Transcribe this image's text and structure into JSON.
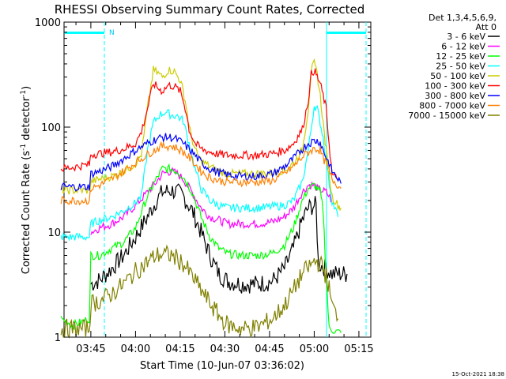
{
  "chart_data": {
    "type": "line",
    "title": "RHESSI Observing Summary Count Rates, Corrected",
    "xlabel": "Start Time (10-Jun-07 03:36:02)",
    "ylabel": "Corrected Count Rate (s⁻¹ detector⁻¹)",
    "ylabel_main": "Corrected Count Rate (s",
    "ylabel_sup1": "-1",
    "ylabel_mid": " detector",
    "ylabel_sup2": "-1",
    "ylabel_end": ")",
    "y_scale": "log",
    "ylim": [
      1,
      1000
    ],
    "xlim_minutes_after_0336": [
      0,
      103
    ],
    "x_ticks": [
      {
        "label": "03:45",
        "t": 9
      },
      {
        "label": "04:00",
        "t": 24
      },
      {
        "label": "04:15",
        "t": 39
      },
      {
        "label": "04:30",
        "t": 54
      },
      {
        "label": "04:45",
        "t": 69
      },
      {
        "label": "05:00",
        "t": 84
      },
      {
        "label": "05:15",
        "t": 99
      }
    ],
    "y_ticks": [
      {
        "label": "1",
        "v": 1
      },
      {
        "label": "10",
        "v": 10
      },
      {
        "label": "100",
        "v": 100
      },
      {
        "label": "1000",
        "v": 1000
      }
    ],
    "legend_header": [
      "Det 1,3,4,5,6,9,",
      "Att 0"
    ],
    "legend_position": "right",
    "night_label": "N",
    "timestamp": "15-Oct-2021 18:38",
    "series": [
      {
        "name": "3 - 6 keV",
        "color": "#000000",
        "points": [
          [
            9,
            3.2
          ],
          [
            12,
            3.5
          ],
          [
            16,
            4.5
          ],
          [
            20,
            6
          ],
          [
            24,
            9
          ],
          [
            28,
            14
          ],
          [
            31,
            20
          ],
          [
            33,
            24
          ],
          [
            36,
            25
          ],
          [
            38,
            24
          ],
          [
            40,
            22
          ],
          [
            43,
            16
          ],
          [
            46,
            10
          ],
          [
            49,
            6
          ],
          [
            52,
            4
          ],
          [
            55,
            3.4
          ],
          [
            60,
            3.2
          ],
          [
            65,
            3.2
          ],
          [
            70,
            3.4
          ],
          [
            74,
            4.5
          ],
          [
            77,
            7
          ],
          [
            80,
            13
          ],
          [
            82,
            17
          ],
          [
            84,
            18
          ],
          [
            84.6,
            18
          ],
          [
            85.4,
            5
          ],
          [
            88,
            4.5
          ],
          [
            90,
            4
          ],
          [
            92,
            4
          ],
          [
            95,
            4
          ]
        ]
      },
      {
        "name": "6 - 12 keV",
        "color": "#ff00ff",
        "points": [
          [
            9,
            10
          ],
          [
            12,
            11
          ],
          [
            16,
            12
          ],
          [
            20,
            14
          ],
          [
            24,
            18
          ],
          [
            28,
            24
          ],
          [
            31,
            30
          ],
          [
            33,
            36
          ],
          [
            36,
            38
          ],
          [
            38,
            36
          ],
          [
            40,
            32
          ],
          [
            43,
            24
          ],
          [
            46,
            17
          ],
          [
            49,
            14
          ],
          [
            52,
            13
          ],
          [
            55,
            12
          ],
          [
            60,
            12
          ],
          [
            65,
            12
          ],
          [
            70,
            12.5
          ],
          [
            74,
            14
          ],
          [
            77,
            17
          ],
          [
            80,
            24
          ],
          [
            82,
            28
          ],
          [
            84,
            28
          ],
          [
            85,
            26
          ],
          [
            88,
            24
          ],
          [
            90,
            20
          ]
        ]
      },
      {
        "name": "12 - 25 keV",
        "color": "#00ff00",
        "points": [
          [
            -1,
            1.5
          ],
          [
            3,
            1.3
          ],
          [
            6,
            1.4
          ],
          [
            8.5,
            1.5
          ],
          [
            9,
            6
          ],
          [
            12,
            6
          ],
          [
            16,
            7
          ],
          [
            20,
            8
          ],
          [
            24,
            11
          ],
          [
            28,
            22
          ],
          [
            31,
            32
          ],
          [
            33,
            40
          ],
          [
            36,
            40
          ],
          [
            38,
            38
          ],
          [
            40,
            34
          ],
          [
            43,
            24
          ],
          [
            46,
            14
          ],
          [
            49,
            9
          ],
          [
            52,
            7
          ],
          [
            55,
            6.2
          ],
          [
            60,
            6
          ],
          [
            65,
            6
          ],
          [
            70,
            6.3
          ],
          [
            74,
            7.5
          ],
          [
            77,
            11
          ],
          [
            80,
            20
          ],
          [
            82,
            26
          ],
          [
            84,
            28
          ],
          [
            85,
            26
          ],
          [
            86,
            24
          ],
          [
            87,
            16
          ],
          [
            88,
            4
          ],
          [
            89,
            1.2
          ],
          [
            93,
            1.1
          ]
        ]
      },
      {
        "name": "25 - 50 keV",
        "color": "#00ffff",
        "points": [
          [
            -1,
            9
          ],
          [
            4,
            9
          ],
          [
            8.5,
            9
          ],
          [
            9,
            12
          ],
          [
            12,
            13
          ],
          [
            16,
            14
          ],
          [
            20,
            16
          ],
          [
            24,
            19
          ],
          [
            26,
            22
          ],
          [
            28,
            60
          ],
          [
            30,
            110
          ],
          [
            32,
            130
          ],
          [
            34,
            140
          ],
          [
            36,
            130
          ],
          [
            38,
            128
          ],
          [
            40,
            115
          ],
          [
            42,
            70
          ],
          [
            44,
            40
          ],
          [
            46,
            26
          ],
          [
            49,
            20
          ],
          [
            52,
            18
          ],
          [
            55,
            17
          ],
          [
            60,
            17
          ],
          [
            65,
            17
          ],
          [
            70,
            17.5
          ],
          [
            74,
            18
          ],
          [
            77,
            20
          ],
          [
            80,
            30
          ],
          [
            82,
            60
          ],
          [
            84,
            160
          ],
          [
            85,
            150
          ],
          [
            86,
            110
          ],
          [
            87,
            80
          ],
          [
            88,
            50
          ],
          [
            89,
            30
          ],
          [
            90,
            20
          ],
          [
            92,
            14
          ]
        ]
      },
      {
        "name": "50 - 100 keV",
        "color": "#cccc00",
        "points": [
          [
            -1,
            25
          ],
          [
            4,
            25
          ],
          [
            8.5,
            25
          ],
          [
            9,
            30
          ],
          [
            12,
            32
          ],
          [
            16,
            34
          ],
          [
            20,
            38
          ],
          [
            24,
            45
          ],
          [
            26,
            55
          ],
          [
            28,
            150
          ],
          [
            30,
            350
          ],
          [
            32,
            320
          ],
          [
            33,
            300
          ],
          [
            35,
            350
          ],
          [
            37,
            340
          ],
          [
            39,
            280
          ],
          [
            40,
            220
          ],
          [
            41,
            160
          ],
          [
            42,
            100
          ],
          [
            44,
            60
          ],
          [
            46,
            48
          ],
          [
            49,
            42
          ],
          [
            52,
            38
          ],
          [
            55,
            36
          ],
          [
            60,
            36
          ],
          [
            65,
            36
          ],
          [
            70,
            37
          ],
          [
            74,
            39
          ],
          [
            77,
            45
          ],
          [
            80,
            60
          ],
          [
            82,
            150
          ],
          [
            83,
            350
          ],
          [
            84,
            400
          ],
          [
            85,
            320
          ],
          [
            86,
            200
          ],
          [
            87,
            110
          ],
          [
            88,
            60
          ],
          [
            89,
            35
          ],
          [
            90,
            22
          ],
          [
            92,
            18
          ],
          [
            93,
            17
          ]
        ]
      },
      {
        "name": "100 - 300 keV",
        "color": "#ff0000",
        "points": [
          [
            -1,
            40
          ],
          [
            4,
            42
          ],
          [
            8.5,
            44
          ],
          [
            9,
            55
          ],
          [
            12,
            56
          ],
          [
            16,
            58
          ],
          [
            20,
            62
          ],
          [
            24,
            70
          ],
          [
            26,
            90
          ],
          [
            28,
            150
          ],
          [
            30,
            260
          ],
          [
            32,
            230
          ],
          [
            33,
            220
          ],
          [
            35,
            250
          ],
          [
            37,
            245
          ],
          [
            39,
            220
          ],
          [
            40,
            180
          ],
          [
            41,
            140
          ],
          [
            42,
            95
          ],
          [
            44,
            70
          ],
          [
            46,
            62
          ],
          [
            49,
            58
          ],
          [
            52,
            55
          ],
          [
            55,
            54
          ],
          [
            60,
            54
          ],
          [
            65,
            54
          ],
          [
            70,
            56
          ],
          [
            74,
            60
          ],
          [
            77,
            70
          ],
          [
            80,
            95
          ],
          [
            82,
            180
          ],
          [
            83,
            320
          ],
          [
            84,
            350
          ],
          [
            85,
            300
          ],
          [
            86,
            260
          ],
          [
            87,
            200
          ],
          [
            88,
            150
          ],
          [
            89,
            70
          ],
          [
            90,
            35
          ],
          [
            92,
            32
          ]
        ]
      },
      {
        "name": "300 - 800 keV",
        "color": "#0000ff",
        "points": [
          [
            -1,
            27
          ],
          [
            4,
            27
          ],
          [
            8.5,
            27
          ],
          [
            9,
            36
          ],
          [
            12,
            38
          ],
          [
            16,
            42
          ],
          [
            20,
            50
          ],
          [
            24,
            60
          ],
          [
            28,
            70
          ],
          [
            31,
            77
          ],
          [
            33,
            80
          ],
          [
            36,
            80
          ],
          [
            38,
            76
          ],
          [
            40,
            70
          ],
          [
            43,
            58
          ],
          [
            46,
            46
          ],
          [
            49,
            40
          ],
          [
            52,
            37
          ],
          [
            55,
            35
          ],
          [
            60,
            34
          ],
          [
            65,
            34
          ],
          [
            70,
            36
          ],
          [
            74,
            42
          ],
          [
            77,
            50
          ],
          [
            80,
            62
          ],
          [
            82,
            70
          ],
          [
            84,
            74
          ],
          [
            85,
            74
          ],
          [
            86,
            72
          ],
          [
            87,
            60
          ],
          [
            88,
            52
          ],
          [
            89,
            45
          ],
          [
            90,
            38
          ],
          [
            92,
            32
          ],
          [
            93,
            29
          ]
        ]
      },
      {
        "name": "800 - 7000 keV",
        "color": "#ff8000",
        "points": [
          [
            -1,
            20
          ],
          [
            4,
            20
          ],
          [
            8.5,
            20
          ],
          [
            9,
            26
          ],
          [
            12,
            28
          ],
          [
            16,
            32
          ],
          [
            20,
            38
          ],
          [
            24,
            46
          ],
          [
            28,
            55
          ],
          [
            31,
            62
          ],
          [
            33,
            66
          ],
          [
            36,
            66
          ],
          [
            38,
            63
          ],
          [
            40,
            58
          ],
          [
            43,
            48
          ],
          [
            46,
            38
          ],
          [
            49,
            33
          ],
          [
            52,
            31
          ],
          [
            55,
            30
          ],
          [
            60,
            30
          ],
          [
            65,
            30
          ],
          [
            70,
            31
          ],
          [
            74,
            36
          ],
          [
            77,
            42
          ],
          [
            80,
            52
          ],
          [
            82,
            58
          ],
          [
            84,
            62
          ],
          [
            85,
            62
          ],
          [
            86,
            60
          ],
          [
            87,
            50
          ],
          [
            88,
            45
          ],
          [
            89,
            38
          ],
          [
            90,
            32
          ],
          [
            92,
            28
          ],
          [
            93,
            26
          ]
        ]
      },
      {
        "name": "7000 - 15000 keV",
        "color": "#808000",
        "points": [
          [
            -1,
            1.2
          ],
          [
            4,
            1.2
          ],
          [
            8.5,
            1.2
          ],
          [
            9,
            2.1
          ],
          [
            12,
            2.2
          ],
          [
            16,
            2.6
          ],
          [
            20,
            3.2
          ],
          [
            24,
            4.2
          ],
          [
            28,
            5.2
          ],
          [
            31,
            6
          ],
          [
            33,
            6.2
          ],
          [
            36,
            6
          ],
          [
            38,
            5.6
          ],
          [
            40,
            5
          ],
          [
            43,
            3.8
          ],
          [
            46,
            2.8
          ],
          [
            49,
            2.1
          ],
          [
            52,
            1.6
          ],
          [
            55,
            1.3
          ],
          [
            60,
            1.2
          ],
          [
            65,
            1.25
          ],
          [
            70,
            1.5
          ],
          [
            74,
            2
          ],
          [
            77,
            2.8
          ],
          [
            80,
            4
          ],
          [
            82,
            4.6
          ],
          [
            84,
            5.2
          ],
          [
            85,
            5.2
          ],
          [
            86,
            5
          ],
          [
            87,
            4.5
          ],
          [
            88,
            3.8
          ],
          [
            89,
            2.9
          ],
          [
            90,
            2
          ],
          [
            92,
            1.5
          ]
        ]
      }
    ]
  }
}
